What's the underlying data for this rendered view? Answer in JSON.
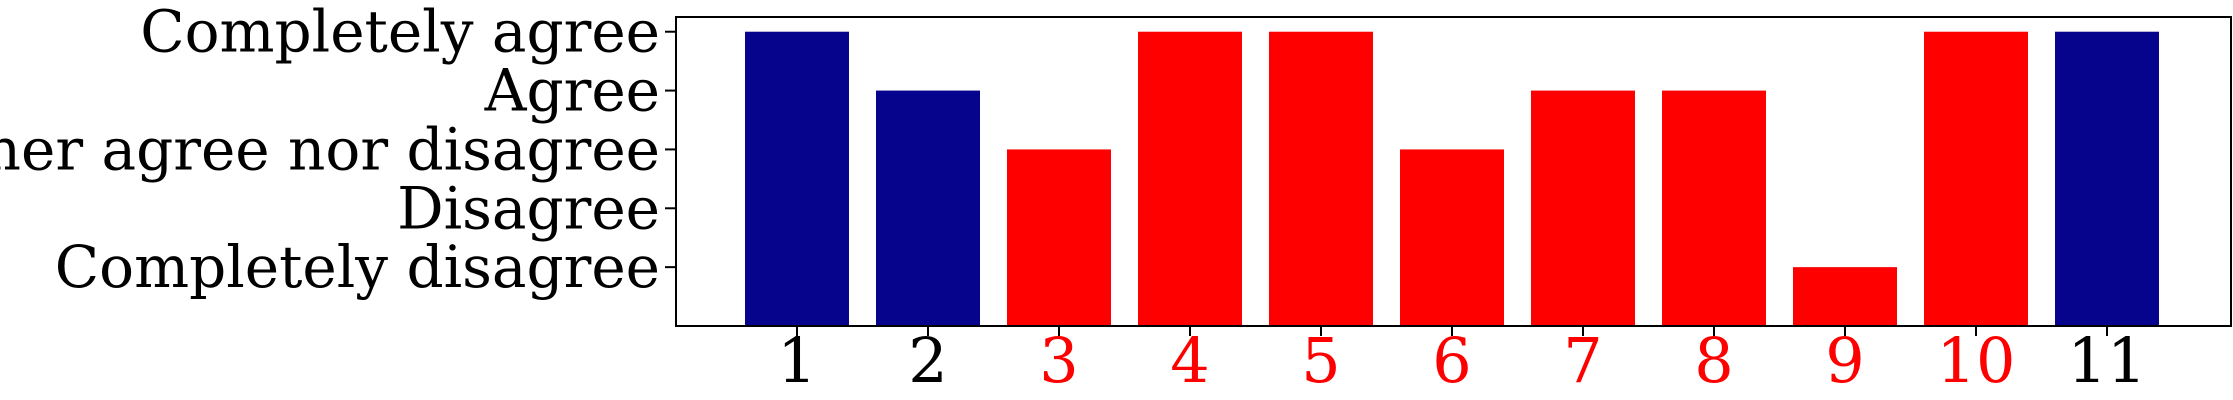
{
  "chart_data": {
    "type": "bar",
    "title": "",
    "xlabel": "",
    "ylabel": "",
    "categories": [
      "1",
      "2",
      "3",
      "4",
      "5",
      "6",
      "7",
      "8",
      "9",
      "10",
      "11"
    ],
    "values": [
      5,
      4,
      3,
      5,
      5,
      3,
      4,
      4,
      1,
      5,
      5
    ],
    "ylim": [
      0,
      5.25
    ],
    "y_tick_values": [
      1,
      2,
      3,
      4,
      5
    ],
    "y_tick_labels": [
      "Completely disagree",
      "Disagree",
      "Neither agree nor disagree",
      "Agree",
      "Completely agree"
    ],
    "bar_colors": [
      "#06038d",
      "#06038d",
      "#ff0000",
      "#ff0000",
      "#ff0000",
      "#ff0000",
      "#ff0000",
      "#ff0000",
      "#ff0000",
      "#ff0000",
      "#06038d"
    ],
    "x_tick_label_colors": [
      "#000000",
      "#000000",
      "#ff0000",
      "#ff0000",
      "#ff0000",
      "#ff0000",
      "#ff0000",
      "#ff0000",
      "#ff0000",
      "#ff0000",
      "#000000"
    ],
    "grid": false,
    "legend": "none"
  }
}
